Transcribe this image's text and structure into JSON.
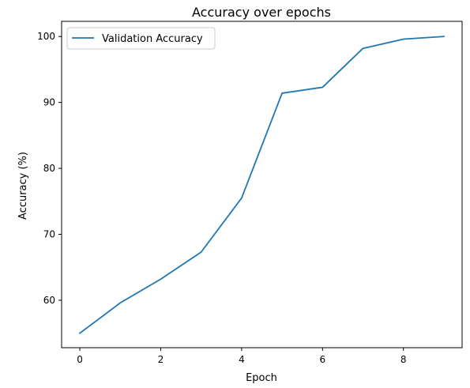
{
  "chart_data": {
    "type": "line",
    "title": "Accuracy over epochs",
    "xlabel": "Epoch",
    "ylabel": "Accuracy (%)",
    "xlim": [
      -0.45,
      9.45
    ],
    "ylim": [
      52.8,
      102.3
    ],
    "xticks": [
      0,
      2,
      4,
      6,
      8
    ],
    "yticks": [
      60,
      70,
      80,
      90,
      100
    ],
    "grid": false,
    "legend_position": "upper-left",
    "series": [
      {
        "name": "Validation Accuracy",
        "color": "#1f77b4",
        "x": [
          0,
          1,
          2,
          3,
          4,
          5,
          6,
          7,
          8,
          9
        ],
        "y": [
          55.0,
          59.6,
          63.2,
          67.3,
          75.5,
          91.4,
          92.3,
          98.2,
          99.6,
          100.0
        ]
      }
    ]
  }
}
